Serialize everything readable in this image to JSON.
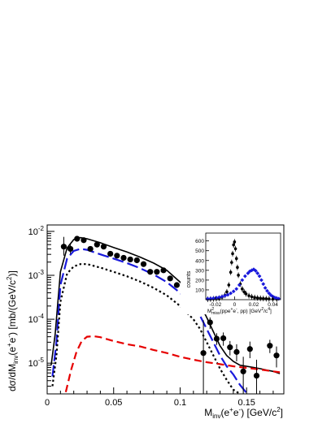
{
  "chart_data": [
    {
      "type": "scatter",
      "role": "main",
      "title": "",
      "xlabel": {
        "base": "M",
        "sub": "inv",
        "tail": "(e",
        "sup1": "+",
        "mid": "e",
        "sup2": "-",
        "end": ") [GeV/c",
        "sup3": "2",
        "close": "]"
      },
      "ylabel": {
        "base": "dσ/dM",
        "sub": "inv",
        "tail": "(e",
        "sup1": "+",
        "mid": "e",
        "sup2": "-",
        "end": ") [mb/(GeV/c",
        "sup3": "2",
        "close": ")]"
      },
      "xlim": [
        0,
        0.178
      ],
      "ylim": [
        2e-06,
        0.014
      ],
      "yscale": "log",
      "x_ticks": [
        0,
        0.05,
        0.1,
        0.15
      ],
      "x_tick_labels": [
        "0",
        "0.05",
        "0.1",
        "0.15"
      ],
      "y_ticks": [
        1e-05,
        0.0001,
        0.001,
        0.01
      ],
      "y_tick_labels": [
        {
          "base": "10",
          "exp": "-5"
        },
        {
          "base": "10",
          "exp": "-4"
        },
        {
          "base": "10",
          "exp": "-3"
        },
        {
          "base": "10",
          "exp": "-2"
        }
      ],
      "points": [
        {
          "x": 0.0125,
          "y": 0.0045,
          "lo": 0.0028,
          "hi": 0.0075
        },
        {
          "x": 0.0175,
          "y": 0.004,
          "lo": 0.0031,
          "hi": 0.005
        },
        {
          "x": 0.0225,
          "y": 0.0068,
          "lo": 0.0062,
          "hi": 0.0074
        },
        {
          "x": 0.0275,
          "y": 0.0063,
          "lo": 0.0058,
          "hi": 0.0068
        },
        {
          "x": 0.0325,
          "y": 0.004,
          "lo": 0.0036,
          "hi": 0.0044
        },
        {
          "x": 0.0375,
          "y": 0.005,
          "lo": 0.0045,
          "hi": 0.0055
        },
        {
          "x": 0.0425,
          "y": 0.0045,
          "lo": 0.0041,
          "hi": 0.0049
        },
        {
          "x": 0.0475,
          "y": 0.0031,
          "lo": 0.0028,
          "hi": 0.0034
        },
        {
          "x": 0.0525,
          "y": 0.0028,
          "lo": 0.0025,
          "hi": 0.0031
        },
        {
          "x": 0.0575,
          "y": 0.0025,
          "lo": 0.0022,
          "hi": 0.0028
        },
        {
          "x": 0.0625,
          "y": 0.0023,
          "lo": 0.002,
          "hi": 0.0026
        },
        {
          "x": 0.0675,
          "y": 0.0022,
          "lo": 0.0019,
          "hi": 0.0025
        },
        {
          "x": 0.0725,
          "y": 0.0018,
          "lo": 0.0016,
          "hi": 0.002
        },
        {
          "x": 0.0775,
          "y": 0.0012,
          "lo": 0.00105,
          "hi": 0.00135
        },
        {
          "x": 0.0825,
          "y": 0.0012,
          "lo": 0.00105,
          "hi": 0.00135
        },
        {
          "x": 0.0875,
          "y": 0.0013,
          "lo": 0.00114,
          "hi": 0.00146
        },
        {
          "x": 0.0925,
          "y": 0.00085,
          "lo": 0.00074,
          "hi": 0.00096
        },
        {
          "x": 0.0975,
          "y": 0.0006,
          "lo": 0.00052,
          "hi": 0.00068
        },
        {
          "x": 0.1025,
          "y": 0.00042,
          "lo": 0.00036,
          "hi": 0.00048
        },
        {
          "x": 0.1075,
          "y": 0.00033,
          "lo": 0.00028,
          "hi": 0.00038
        },
        {
          "x": 0.1125,
          "y": 0.00022,
          "lo": 0.00018,
          "hi": 0.00026
        },
        {
          "x": 0.1175,
          "y": 1.7e-05,
          "lo": 2e-06,
          "hi": 9.5e-05
        },
        {
          "x": 0.1225,
          "y": 8.5e-05,
          "lo": 6e-05,
          "hi": 0.00011
        },
        {
          "x": 0.1275,
          "y": 3.6e-05,
          "lo": 2.6e-05,
          "hi": 4.8e-05
        },
        {
          "x": 0.1325,
          "y": 3.7e-05,
          "lo": 2.5e-05,
          "hi": 5e-05
        },
        {
          "x": 0.1375,
          "y": 2.3e-05,
          "lo": 1.5e-05,
          "hi": 3.2e-05
        },
        {
          "x": 0.1425,
          "y": 1.8e-05,
          "lo": 1.1e-05,
          "hi": 2.7e-05
        },
        {
          "x": 0.1475,
          "y": 6.5e-06,
          "lo": 2e-06,
          "hi": 1.4e-05
        },
        {
          "x": 0.1525,
          "y": 2.1e-05,
          "lo": 1.3e-05,
          "hi": 3.1e-05
        },
        {
          "x": 0.1575,
          "y": 5.2e-06,
          "lo": 2e-06,
          "hi": 1.2e-05
        },
        {
          "x": 0.1675,
          "y": 2.5e-05,
          "lo": 1.7e-05,
          "hi": 3.4e-05
        },
        {
          "x": 0.1725,
          "y": 1.5e-05,
          "lo": 8e-06,
          "hi": 2.4e-05
        }
      ],
      "series": [
        {
          "style": "solid",
          "color": "#000000",
          "x": [
            0.003,
            0.006,
            0.01,
            0.015,
            0.02,
            0.025,
            0.03,
            0.04,
            0.05,
            0.06,
            0.07,
            0.08,
            0.09,
            0.1,
            0.11,
            0.115,
            0.12,
            0.125,
            0.13,
            0.135,
            0.14,
            0.145,
            0.15,
            0.155,
            0.16,
            0.165,
            0.17,
            0.175
          ],
          "y": [
            9e-06,
            4.5e-05,
            0.0012,
            0.0042,
            0.0065,
            0.0072,
            0.0068,
            0.0055,
            0.0043,
            0.0034,
            0.0026,
            0.0019,
            0.0013,
            0.0007,
            0.00036,
            0.00022,
            0.00011,
            5.2e-05,
            2.5e-05,
            1.5e-05,
            1.1e-05,
            9e-06,
            8.5e-06,
            8e-06,
            7.5e-06,
            7e-06,
            6.5e-06,
            5.8e-06
          ]
        },
        {
          "style": "longdash",
          "color": "#1a1adc",
          "x": [
            0.004,
            0.007,
            0.01,
            0.015,
            0.02,
            0.025,
            0.03,
            0.04,
            0.05,
            0.06,
            0.07,
            0.08,
            0.09,
            0.1,
            0.11,
            0.115,
            0.12,
            0.125,
            0.13,
            0.135,
            0.14,
            0.145,
            0.15
          ],
          "y": [
            5e-06,
            3e-05,
            0.0006,
            0.0024,
            0.0036,
            0.004,
            0.0038,
            0.003,
            0.0024,
            0.0019,
            0.00145,
            0.00105,
            0.0007,
            0.0004,
            0.0002,
            0.00012,
            6e-05,
            3e-05,
            1.5e-05,
            8.5e-06,
            5.5e-06,
            3.2e-06,
            2.1e-06
          ]
        },
        {
          "style": "dotted",
          "color": "#000000",
          "x": [
            0.004,
            0.007,
            0.01,
            0.015,
            0.02,
            0.025,
            0.03,
            0.04,
            0.05,
            0.06,
            0.07,
            0.08,
            0.09,
            0.1,
            0.11,
            0.115,
            0.12,
            0.125,
            0.13,
            0.135,
            0.14,
            0.145
          ],
          "y": [
            3e-06,
            1.5e-05,
            0.00025,
            0.0011,
            0.0016,
            0.0018,
            0.0018,
            0.0015,
            0.0012,
            0.00095,
            0.00072,
            0.00052,
            0.00035,
            0.0002,
            0.0001,
            6e-05,
            3e-05,
            1.5e-05,
            7.5e-06,
            4.2e-06,
            2.5e-06,
            1.8e-06
          ]
        },
        {
          "style": "dashed",
          "color": "#e60000",
          "x": [
            0.014,
            0.018,
            0.022,
            0.026,
            0.03,
            0.035,
            0.04,
            0.05,
            0.06,
            0.07,
            0.08,
            0.09,
            0.1,
            0.11,
            0.12,
            0.13,
            0.14,
            0.15,
            0.16,
            0.17,
            0.175
          ],
          "y": [
            2.2e-06,
            7e-06,
            1.8e-05,
            3.2e-05,
            4e-05,
            4.1e-05,
            3.9e-05,
            3.2e-05,
            2.7e-05,
            2.4e-05,
            2e-05,
            1.7e-05,
            1.4e-05,
            1.2e-05,
            1.05e-05,
            9.5e-06,
            8.5e-06,
            7.8e-06,
            7.2e-06,
            6.5e-06,
            6.2e-06
          ]
        }
      ]
    },
    {
      "type": "scatter",
      "role": "inset",
      "title": "",
      "ylabel": "counts",
      "xlabel": {
        "base": "M",
        "sup": "2",
        "sub": "miss",
        "text": "(ppe",
        "sup1": "+",
        "mid": "e",
        "sup2": "-",
        "tail": ", pp) [GeV",
        "sup3": "2",
        "end": "/c",
        "sup4": "4",
        "close": "]"
      },
      "xlim": [
        -0.03,
        0.048
      ],
      "ylim": [
        0,
        680
      ],
      "x_ticks": [
        -0.02,
        0,
        0.02,
        0.04
      ],
      "x_tick_labels": [
        "-0.02",
        "0",
        "0.02",
        "0.04"
      ],
      "y_ticks": [
        100,
        200,
        300,
        400,
        500,
        600
      ],
      "y_tick_labels": [
        "100",
        "200",
        "300",
        "400",
        "500",
        "600"
      ],
      "series": [
        {
          "name": "",
          "color": "#000000",
          "marker": "circle",
          "x": [
            -0.028,
            -0.025,
            -0.022,
            -0.019,
            -0.016,
            -0.013,
            -0.01,
            -0.008,
            -0.006,
            -0.004,
            -0.003,
            -0.002,
            -0.001,
            0.0,
            0.001,
            0.002,
            0.003,
            0.004,
            0.006,
            0.008,
            0.01,
            0.012,
            0.015,
            0.018,
            0.021,
            0.024,
            0.027,
            0.03,
            0.033,
            0.036,
            0.04,
            0.044
          ],
          "y": [
            5,
            6,
            8,
            10,
            15,
            25,
            45,
            80,
            150,
            280,
            380,
            470,
            560,
            590,
            520,
            420,
            330,
            250,
            160,
            110,
            80,
            60,
            40,
            30,
            22,
            18,
            14,
            12,
            10,
            8,
            7,
            6
          ]
        },
        {
          "name": "",
          "color": "#1a1adc",
          "marker": "diamond",
          "x": [
            -0.028,
            -0.025,
            -0.022,
            -0.019,
            -0.016,
            -0.013,
            -0.01,
            -0.007,
            -0.004,
            -0.001,
            0.002,
            0.005,
            0.008,
            0.011,
            0.014,
            0.016,
            0.018,
            0.02,
            0.022,
            0.024,
            0.026,
            0.028,
            0.03,
            0.032,
            0.034,
            0.036,
            0.038,
            0.04,
            0.042,
            0.044,
            0.046
          ],
          "y": [
            10,
            12,
            15,
            20,
            25,
            32,
            40,
            50,
            65,
            85,
            110,
            150,
            200,
            240,
            270,
            290,
            300,
            310,
            295,
            270,
            240,
            200,
            160,
            120,
            90,
            65,
            45,
            32,
            22,
            15,
            10
          ]
        }
      ]
    }
  ]
}
